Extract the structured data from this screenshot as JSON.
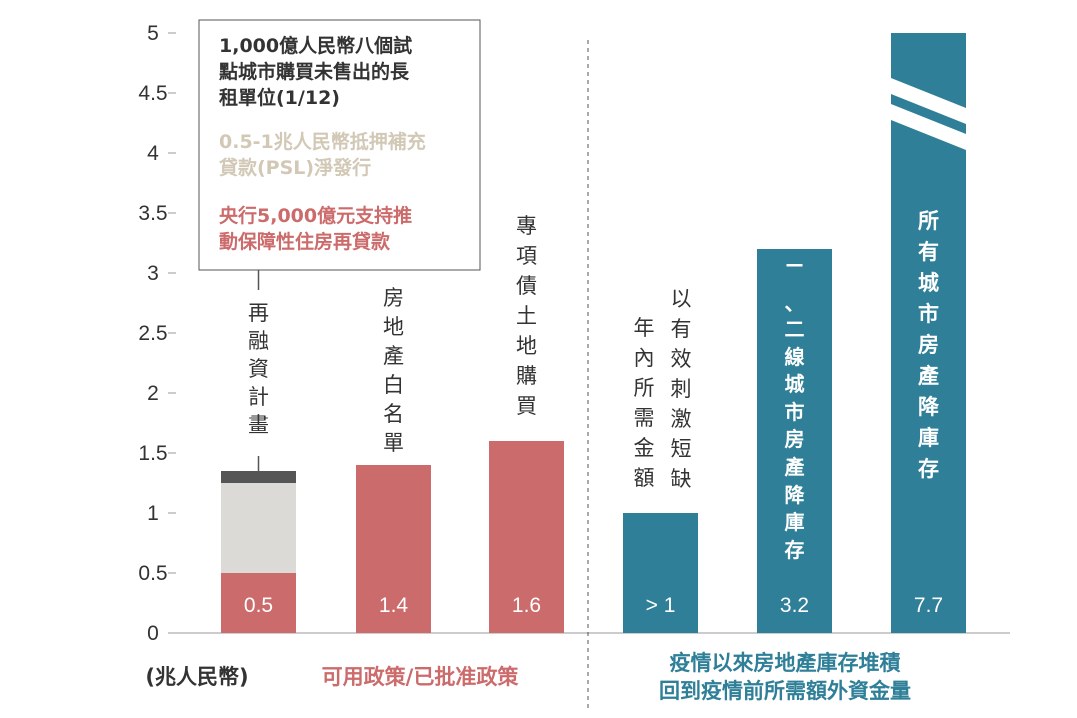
{
  "chart_data": {
    "type": "bar",
    "unit_label": "(兆人民幣)",
    "ylim": [
      0,
      5
    ],
    "yticks": [
      "0",
      "0.5",
      "1",
      "1.5",
      "2",
      "2.5",
      "3",
      "3.5",
      "4",
      "4.5",
      "5"
    ],
    "groups": [
      {
        "label": "可用政策/已批准政策",
        "color": "#cc6b6b"
      },
      {
        "label_lines": [
          "疫情以來房地產庫存堆積",
          "回到疫情前所需額外資金量"
        ],
        "color": "#2e7f97"
      }
    ],
    "legend_box": [
      {
        "lines": [
          "1,000億人民幣八個試",
          "點城市購買未售出的長",
          "租單位(1/12)"
        ],
        "color": "#333333"
      },
      {
        "lines": [
          "0.5-1兆人民幣抵押補充",
          "貸款(PSL)淨發行"
        ],
        "color": "#d2c8b6"
      },
      {
        "lines": [
          "央行5,000億元支持推",
          "動保障性住房再貸款"
        ],
        "color": "#cc6b6b"
      }
    ],
    "bars": [
      {
        "name": "再融資計畫",
        "group": 0,
        "value_label": "0.5",
        "segments": [
          {
            "value": 0.5,
            "color": "#cc6b6b"
          },
          {
            "value": 0.75,
            "color": "#dcdad6"
          },
          {
            "value": 0.1,
            "color": "#555555"
          }
        ]
      },
      {
        "name": "房地產白名單",
        "group": 0,
        "value": 1.4,
        "value_label": "1.4",
        "color": "#cc6b6b"
      },
      {
        "name": "專項債土地購買",
        "group": 0,
        "value": 1.6,
        "value_label": "1.6",
        "color": "#cc6b6b"
      },
      {
        "name_columns": [
          "以有效刺激短缺",
          "年內所需金額"
        ],
        "group": 1,
        "value": 1.0,
        "value_label": "> 1",
        "color": "#2e7f97"
      },
      {
        "name": "一、二線城市房產降庫存",
        "group": 1,
        "value": 3.2,
        "value_label": "3.2",
        "color": "#2e7f97"
      },
      {
        "name": "所有城市房產降庫存",
        "group": 1,
        "value": 7.7,
        "value_label": "7.7",
        "color": "#2e7f97",
        "broken_axis": true
      }
    ]
  }
}
